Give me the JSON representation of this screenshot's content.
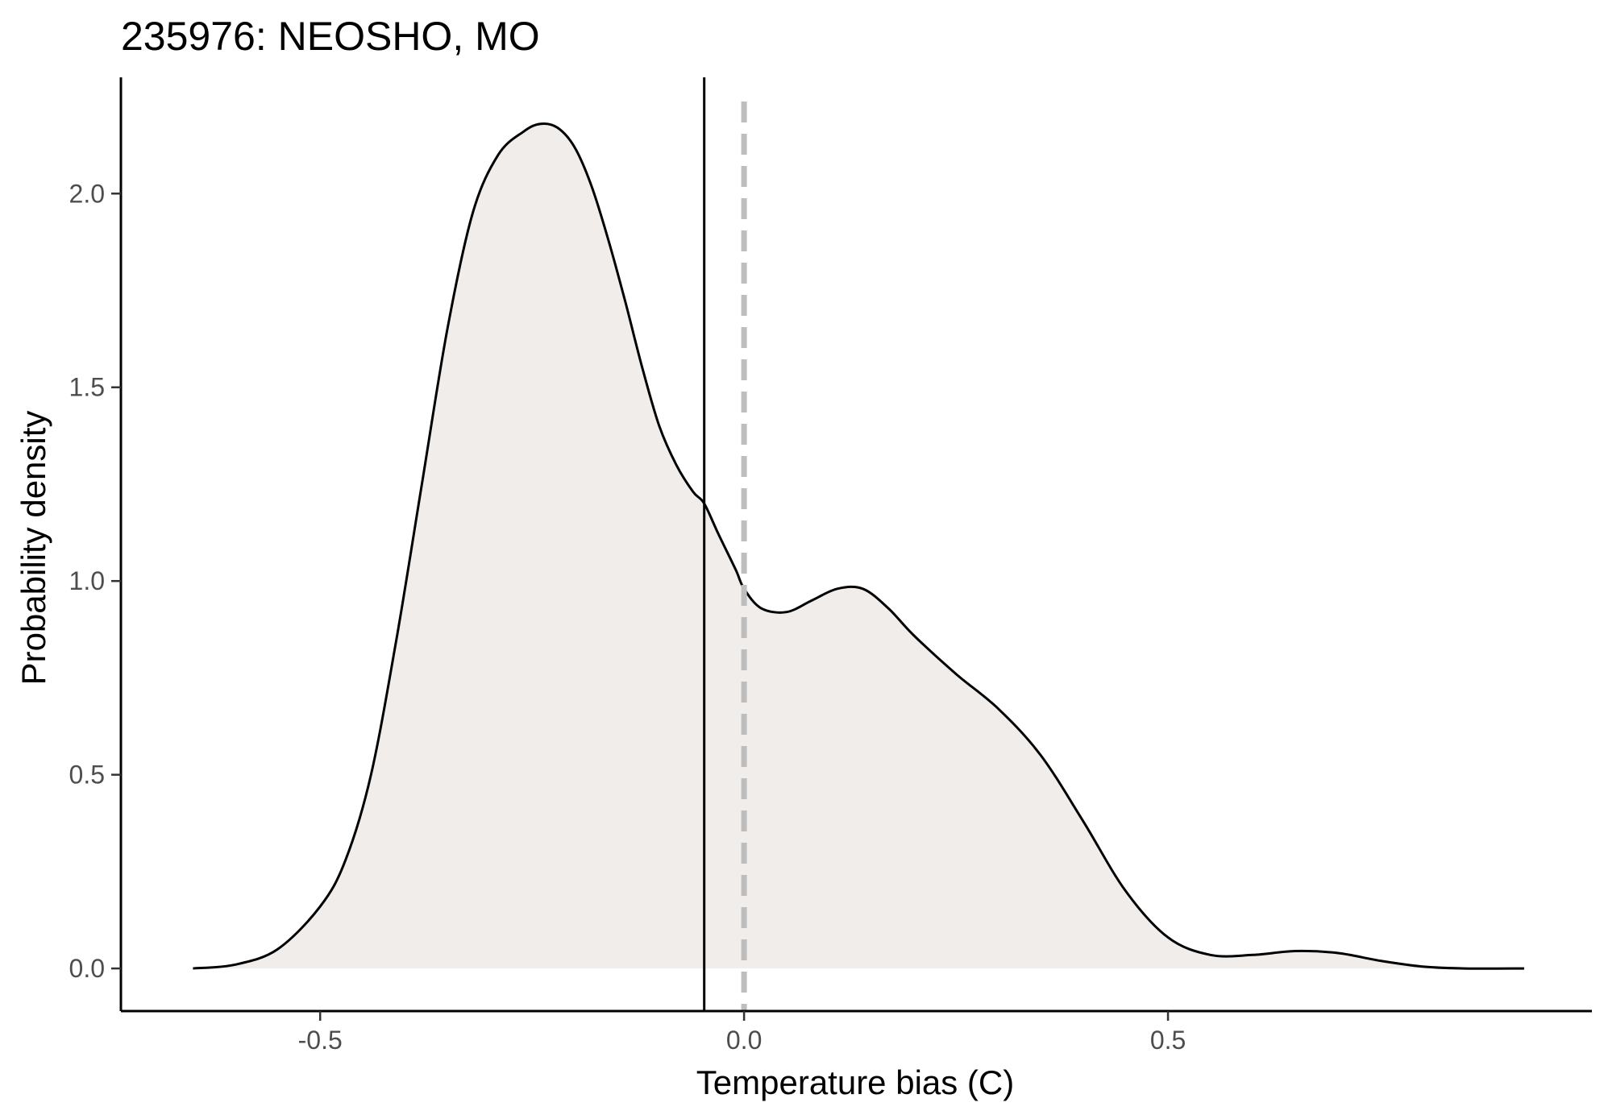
{
  "chart_data": {
    "type": "area",
    "title": "235976: NEOSHO, MO",
    "xlabel": "Temperature bias (C)",
    "ylabel": "Probability density",
    "xlim": [
      -0.735,
      1.0
    ],
    "ylim": [
      -0.11,
      2.3
    ],
    "x_ticks": [
      -0.5,
      0.0,
      0.5
    ],
    "x_tick_labels": [
      "-0.5",
      "0.0",
      "0.5"
    ],
    "y_ticks": [
      0.0,
      0.5,
      1.0,
      1.5,
      2.0
    ],
    "y_tick_labels": [
      "0.0",
      "0.5",
      "1.0",
      "1.5",
      "2.0"
    ],
    "grid": false,
    "fill_color": "#f0edea",
    "line_color": "#000000",
    "reference_lines": [
      {
        "x": -0.047,
        "style": "solid",
        "color": "#000000"
      },
      {
        "x": 0.0,
        "style": "dashed",
        "color": "#bebebe"
      }
    ],
    "series": [
      {
        "x": [
          -0.65,
          -0.6,
          -0.55,
          -0.5,
          -0.47,
          -0.44,
          -0.41,
          -0.38,
          -0.35,
          -0.32,
          -0.29,
          -0.26,
          -0.24,
          -0.22,
          -0.2,
          -0.18,
          -0.16,
          -0.14,
          -0.12,
          -0.1,
          -0.08,
          -0.06,
          -0.047,
          -0.03,
          -0.01,
          0.0,
          0.02,
          0.05,
          0.08,
          0.11,
          0.14,
          0.17,
          0.2,
          0.25,
          0.3,
          0.35,
          0.4,
          0.45,
          0.5,
          0.55,
          0.6,
          0.65,
          0.7,
          0.75,
          0.8,
          0.85,
          0.92
        ],
        "y": [
          0.0,
          0.01,
          0.05,
          0.16,
          0.28,
          0.5,
          0.85,
          1.25,
          1.65,
          1.95,
          2.1,
          2.16,
          2.18,
          2.17,
          2.12,
          2.02,
          1.88,
          1.72,
          1.55,
          1.4,
          1.3,
          1.23,
          1.2,
          1.12,
          1.03,
          0.98,
          0.93,
          0.92,
          0.95,
          0.98,
          0.98,
          0.93,
          0.86,
          0.76,
          0.67,
          0.55,
          0.38,
          0.2,
          0.08,
          0.035,
          0.035,
          0.045,
          0.04,
          0.02,
          0.005,
          0.0,
          0.0
        ]
      }
    ]
  }
}
